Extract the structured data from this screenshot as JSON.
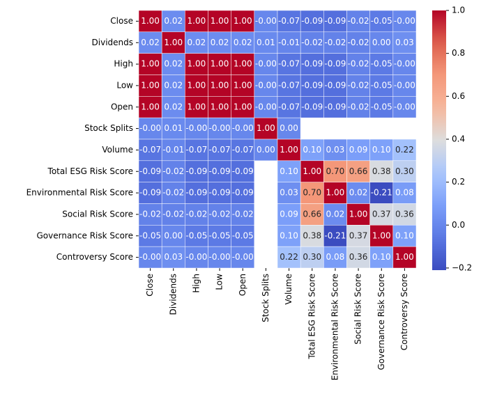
{
  "chart_data": {
    "type": "heatmap",
    "x": [
      "Close",
      "Dividends",
      "High",
      "Low",
      "Open",
      "Stock Splits",
      "Volume",
      "Total ESG Risk Score",
      "Environmental Risk Score",
      "Social Risk Score",
      "Governance Risk Score",
      "Controversy Score"
    ],
    "y": [
      "Close",
      "Dividends",
      "High",
      "Low",
      "Open",
      "Stock Splits",
      "Volume",
      "Total ESG Risk Score",
      "Environmental Risk Score",
      "Social Risk Score",
      "Governance Risk Score",
      "Controversy Score"
    ],
    "values": [
      [
        1,
        0.02,
        1,
        1,
        1,
        -0.001,
        -0.07,
        -0.09,
        -0.09,
        -0.02,
        -0.05,
        -0.001
      ],
      [
        0.02,
        1,
        0.02,
        0.02,
        0.02,
        0.01,
        -0.01,
        -0.02,
        -0.02,
        -0.02,
        0,
        0.03
      ],
      [
        1,
        0.02,
        1,
        1,
        1,
        -0.001,
        -0.07,
        -0.09,
        -0.09,
        -0.02,
        -0.05,
        -0.001
      ],
      [
        1,
        0.02,
        1,
        1,
        1,
        -0.001,
        -0.07,
        -0.09,
        -0.09,
        -0.02,
        -0.05,
        -0.001
      ],
      [
        1,
        0.02,
        1,
        1,
        1,
        -0.001,
        -0.07,
        -0.09,
        -0.09,
        -0.02,
        -0.05,
        -0.001
      ],
      [
        -0.001,
        0.01,
        -0.001,
        -0.001,
        -0.001,
        1,
        0,
        null,
        null,
        null,
        null,
        null
      ],
      [
        -0.07,
        -0.01,
        -0.07,
        -0.07,
        -0.07,
        0,
        1,
        0.1,
        0.03,
        0.09,
        0.1,
        0.22
      ],
      [
        -0.09,
        -0.02,
        -0.09,
        -0.09,
        -0.09,
        null,
        0.1,
        1,
        0.7,
        0.66,
        0.38,
        0.3
      ],
      [
        -0.09,
        -0.02,
        -0.09,
        -0.09,
        -0.09,
        null,
        0.03,
        0.7,
        1,
        0.02,
        -0.21,
        0.08
      ],
      [
        -0.02,
        -0.02,
        -0.02,
        -0.02,
        -0.02,
        null,
        0.09,
        0.66,
        0.02,
        1,
        0.37,
        0.36
      ],
      [
        -0.05,
        0,
        -0.05,
        -0.05,
        -0.05,
        null,
        0.1,
        0.38,
        -0.21,
        0.37,
        1,
        0.1
      ],
      [
        -0.001,
        0.03,
        -0.001,
        -0.001,
        -0.001,
        null,
        0.22,
        0.3,
        0.08,
        0.36,
        0.1,
        1
      ]
    ],
    "value_labels": [
      [
        "1.00",
        "0.02",
        "1.00",
        "1.00",
        "1.00",
        "-0.00",
        "-0.07",
        "-0.09",
        "-0.09",
        "-0.02",
        "-0.05",
        "-0.00"
      ],
      [
        "0.02",
        "1.00",
        "0.02",
        "0.02",
        "0.02",
        "0.01",
        "-0.01",
        "-0.02",
        "-0.02",
        "-0.02",
        "0.00",
        "0.03"
      ],
      [
        "1.00",
        "0.02",
        "1.00",
        "1.00",
        "1.00",
        "-0.00",
        "-0.07",
        "-0.09",
        "-0.09",
        "-0.02",
        "-0.05",
        "-0.00"
      ],
      [
        "1.00",
        "0.02",
        "1.00",
        "1.00",
        "1.00",
        "-0.00",
        "-0.07",
        "-0.09",
        "-0.09",
        "-0.02",
        "-0.05",
        "-0.00"
      ],
      [
        "1.00",
        "0.02",
        "1.00",
        "1.00",
        "1.00",
        "-0.00",
        "-0.07",
        "-0.09",
        "-0.09",
        "-0.02",
        "-0.05",
        "-0.00"
      ],
      [
        "-0.00",
        "0.01",
        "-0.00",
        "-0.00",
        "-0.00",
        "1.00",
        "0.00",
        null,
        null,
        null,
        null,
        null
      ],
      [
        "-0.07",
        "-0.01",
        "-0.07",
        "-0.07",
        "-0.07",
        "0.00",
        "1.00",
        "0.10",
        "0.03",
        "0.09",
        "0.10",
        "0.22"
      ],
      [
        "-0.09",
        "-0.02",
        "-0.09",
        "-0.09",
        "-0.09",
        null,
        "0.10",
        "1.00",
        "0.70",
        "0.66",
        "0.38",
        "0.30"
      ],
      [
        "-0.09",
        "-0.02",
        "-0.09",
        "-0.09",
        "-0.09",
        null,
        "0.03",
        "0.70",
        "1.00",
        "0.02",
        "-0.21",
        "0.08"
      ],
      [
        "-0.02",
        "-0.02",
        "-0.02",
        "-0.02",
        "-0.02",
        null,
        "0.09",
        "0.66",
        "0.02",
        "1.00",
        "0.37",
        "0.36"
      ],
      [
        "-0.05",
        "0.00",
        "-0.05",
        "-0.05",
        "-0.05",
        null,
        "0.10",
        "0.38",
        "-0.21",
        "0.37",
        "1.00",
        "0.10"
      ],
      [
        "-0.00",
        "0.03",
        "-0.00",
        "-0.00",
        "-0.00",
        null,
        "0.22",
        "0.30",
        "0.08",
        "0.36",
        "0.10",
        "1.00"
      ]
    ],
    "colormap": "coolwarm",
    "zlim": [
      -0.21,
      1
    ],
    "zticks": [
      {
        "value": -0.2,
        "label": "−0.2"
      },
      {
        "value": 0,
        "label": "0.0"
      },
      0.2,
      0.4,
      0.6,
      0.8,
      {
        "value": 1,
        "label": "1.0"
      }
    ]
  }
}
